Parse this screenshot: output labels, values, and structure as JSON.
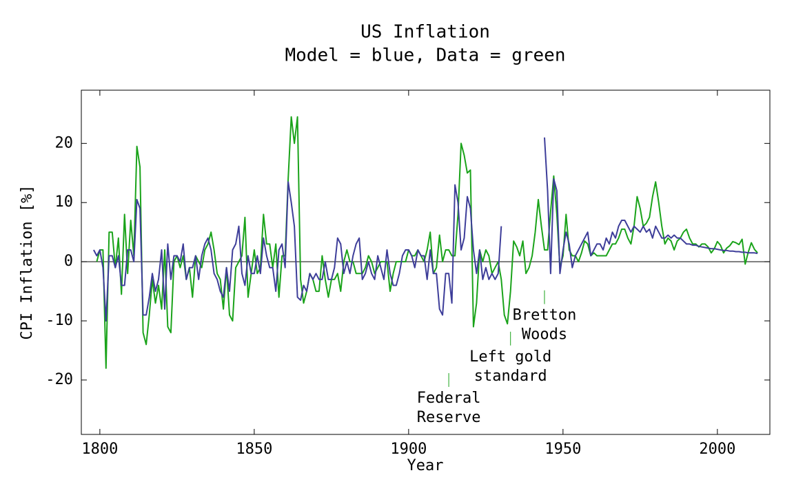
{
  "chart_data": {
    "type": "line",
    "title": "US Inflation",
    "subtitle": "Model = blue, Data = green",
    "x_label": "Year",
    "y_label": "CPI Inflation [%]",
    "x": [
      1798,
      1799,
      1800,
      1801,
      1802,
      1803,
      1804,
      1805,
      1806,
      1807,
      1808,
      1809,
      1810,
      1811,
      1812,
      1813,
      1814,
      1815,
      1816,
      1817,
      1818,
      1819,
      1820,
      1821,
      1822,
      1823,
      1824,
      1825,
      1826,
      1827,
      1828,
      1829,
      1830,
      1831,
      1832,
      1833,
      1834,
      1835,
      1836,
      1837,
      1838,
      1839,
      1840,
      1841,
      1842,
      1843,
      1844,
      1845,
      1846,
      1847,
      1848,
      1849,
      1850,
      1851,
      1852,
      1853,
      1854,
      1855,
      1856,
      1857,
      1858,
      1859,
      1860,
      1861,
      1862,
      1863,
      1864,
      1865,
      1866,
      1867,
      1868,
      1869,
      1870,
      1871,
      1872,
      1873,
      1874,
      1875,
      1876,
      1877,
      1878,
      1879,
      1880,
      1881,
      1882,
      1883,
      1884,
      1885,
      1886,
      1887,
      1888,
      1889,
      1890,
      1891,
      1892,
      1893,
      1894,
      1895,
      1896,
      1897,
      1898,
      1899,
      1900,
      1901,
      1902,
      1903,
      1904,
      1905,
      1906,
      1907,
      1908,
      1909,
      1910,
      1911,
      1912,
      1913,
      1914,
      1915,
      1916,
      1917,
      1918,
      1919,
      1920,
      1921,
      1922,
      1923,
      1924,
      1925,
      1926,
      1927,
      1928,
      1929,
      1930,
      1931,
      1932,
      1933,
      1934,
      1935,
      1936,
      1937,
      1938,
      1939,
      1940,
      1941,
      1942,
      1943,
      1944,
      1945,
      1946,
      1947,
      1948,
      1949,
      1950,
      1951,
      1952,
      1953,
      1954,
      1955,
      1956,
      1957,
      1958,
      1959,
      1960,
      1961,
      1962,
      1963,
      1964,
      1965,
      1966,
      1967,
      1968,
      1969,
      1970,
      1971,
      1972,
      1973,
      1974,
      1975,
      1976,
      1977,
      1978,
      1979,
      1980,
      1981,
      1982,
      1983,
      1984,
      1985,
      1986,
      1987,
      1988,
      1989,
      1990,
      1991,
      1992,
      1993,
      1994,
      1995,
      1996,
      1997,
      1998,
      1999,
      2000,
      2001,
      2002,
      2003,
      2004,
      2005,
      2006,
      2007,
      2008,
      2009,
      2010,
      2011,
      2012,
      2013
    ],
    "series": [
      {
        "color": "#1aa31a",
        "values": [
          null,
          0,
          2,
          2,
          -18,
          5,
          5,
          -1,
          4,
          -5.5,
          8,
          -2,
          7,
          1,
          19.5,
          16,
          -12,
          -14,
          -9,
          -3,
          -7,
          -4,
          -8,
          2,
          -11,
          -12,
          0,
          1,
          -1,
          1,
          -3,
          -1,
          -6,
          1,
          0,
          -1,
          2,
          3,
          5,
          2,
          -2,
          -3,
          -8,
          -1,
          -9,
          -10,
          -1,
          0,
          1,
          7.5,
          -6,
          -2,
          2,
          -2,
          -1,
          8,
          3,
          3,
          -1,
          3,
          -6,
          1,
          1,
          14,
          24.5,
          20,
          24.5,
          -3,
          -7,
          -5,
          -2,
          -3,
          -5,
          -5,
          1,
          -3,
          -6,
          -3,
          -3,
          -2,
          -5,
          0,
          2,
          0,
          0,
          -2,
          -2,
          -2,
          -1,
          1,
          0,
          -2,
          -1,
          0,
          0,
          0,
          -5,
          -2,
          0,
          0,
          0,
          0,
          2,
          1,
          1,
          2,
          1,
          0,
          2,
          5,
          -2,
          -1,
          4.5,
          0,
          2,
          2,
          1,
          1,
          8,
          20,
          18,
          15,
          15.5,
          -11,
          -7,
          2,
          0,
          2,
          1,
          -2,
          -1,
          0,
          -3,
          -9,
          -10.5,
          -5,
          3.5,
          2.5,
          1,
          3.5,
          -2,
          -1,
          1,
          5,
          10.5,
          6,
          2,
          2,
          8.5,
          14.5,
          8,
          -1,
          1,
          8,
          2,
          1,
          1,
          0,
          1.5,
          3.5,
          3,
          1,
          1.5,
          1,
          1,
          1,
          1,
          2,
          3,
          3,
          4,
          5.5,
          5.5,
          4,
          3,
          6,
          11,
          9,
          6,
          6.5,
          7.5,
          11,
          13.5,
          10,
          6,
          3,
          4,
          3.5,
          2,
          3.5,
          4,
          5,
          5.5,
          4,
          3,
          3,
          2.5,
          3,
          3,
          2.5,
          1.5,
          2.2,
          3.4,
          2.8,
          1.5,
          2.3,
          2.7,
          3.4,
          3.2,
          2.9,
          3.8,
          -0.4,
          1.6,
          3.2,
          2.1,
          1.5
        ]
      },
      {
        "color": "#3d3d99",
        "values": [
          2,
          1,
          2,
          -1,
          -10,
          1,
          1,
          -1,
          1,
          -4,
          -4,
          2,
          2,
          0,
          10.5,
          9,
          -9,
          -9,
          -6,
          -2,
          -5,
          -3,
          2,
          -8,
          3,
          -3,
          1,
          1,
          0,
          3,
          -3,
          -1,
          -1,
          1,
          -3,
          1,
          3,
          4,
          2,
          -2,
          -3,
          -5,
          -6,
          -1,
          -5,
          2,
          3,
          6,
          -2,
          -4,
          1,
          -2,
          -2,
          1,
          -2,
          4,
          1,
          -1,
          -1,
          -5,
          2,
          3,
          -1,
          13.5,
          10,
          6,
          -6,
          -6.5,
          -4,
          -5,
          -2,
          -3,
          -2,
          -3,
          -3,
          0,
          -3,
          -3,
          -1,
          4,
          3,
          -2,
          0,
          -2,
          1,
          3,
          4,
          -3,
          -2,
          0,
          -2,
          -3,
          1,
          -1,
          -3,
          2,
          -2,
          -4,
          -4,
          -2,
          1,
          2,
          2,
          1,
          -1,
          2,
          1,
          1,
          -3,
          2,
          -2,
          -2,
          -8,
          -9,
          -2,
          -2,
          -7,
          13,
          10,
          2,
          4,
          11,
          9,
          2,
          -2,
          2,
          -3,
          -1,
          -3,
          -2,
          -3,
          -2,
          6,
          null,
          null,
          null,
          null,
          null,
          null,
          null,
          null,
          null,
          null,
          null,
          null,
          null,
          21,
          12,
          -2,
          14,
          12,
          -2,
          2,
          5,
          3,
          -1,
          1,
          2,
          3,
          4,
          5,
          1,
          2,
          3,
          3,
          2,
          4,
          3,
          5,
          4,
          6,
          7,
          7,
          6,
          5,
          6,
          5.5,
          5,
          6,
          5,
          5.5,
          4,
          6,
          5,
          4,
          4,
          4.5,
          4,
          4.5,
          4,
          4,
          3.5,
          3,
          3,
          2.8,
          2.8,
          2.6,
          2.5,
          2.4,
          2.3,
          2.2,
          2.2,
          2.1,
          2,
          1.9,
          1.9,
          1.8,
          1.8,
          1.7,
          1.7,
          1.6,
          1.6,
          1.5,
          1.5,
          1.5,
          1.4
        ]
      }
    ],
    "xlim": [
      1794,
      2017
    ],
    "xticks": [
      1800,
      1850,
      1900,
      1950,
      2000
    ],
    "ylim": [
      -29.2,
      29
    ],
    "yticks": [
      -20,
      -10,
      0,
      10,
      20
    ],
    "annotations": [
      {
        "lines": [
          "Federal",
          "Reserve"
        ],
        "x": 1913,
        "y": -20
      },
      {
        "lines": [
          "Left gold",
          "standard"
        ],
        "x": 1933,
        "y": -13
      },
      {
        "lines": [
          "Bretton",
          "Woods"
        ],
        "x": 1944,
        "y": -6
      }
    ]
  }
}
